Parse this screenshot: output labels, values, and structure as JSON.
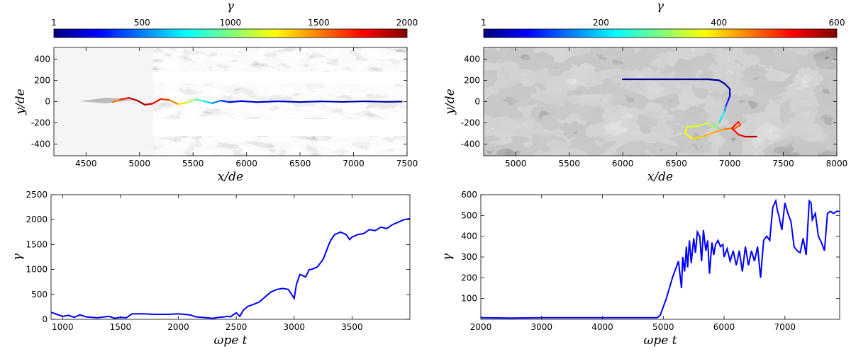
{
  "colors": {
    "line": "#0000ff",
    "jet": [
      "#00007f",
      "#0000ff",
      "#007fff",
      "#00ffff",
      "#7fff7f",
      "#ffff00",
      "#ff7f00",
      "#ff0000",
      "#7f0000"
    ]
  },
  "chart_data": [
    {
      "id": "top-left",
      "type": "image-with-trajectory",
      "title": "",
      "colorbar": {
        "label": "γ",
        "min": 1,
        "max": 2000,
        "ticks": [
          1,
          500,
          1000,
          1500,
          2000
        ],
        "colormap": "jet"
      },
      "xlabel": "x/d_e",
      "ylabel": "y/d_e",
      "xlabel_display": "x/de",
      "ylabel_display": "y/de",
      "xlim": [
        4200,
        7500
      ],
      "ylim": [
        -510,
        510
      ],
      "xticks": [
        4500,
        5000,
        5500,
        6000,
        6500,
        7000,
        7500
      ],
      "yticks": [
        -400,
        -200,
        0,
        200,
        400
      ],
      "background": "grayscale density map",
      "trajectory": {
        "x": [
          4750,
          4820,
          4900,
          4980,
          5050,
          5120,
          5200,
          5280,
          5360,
          5440,
          5520,
          5600,
          5680,
          5760,
          5840,
          5950,
          6100,
          6300,
          6500,
          6700,
          6900,
          7100,
          7300,
          7450
        ],
        "y": [
          -5,
          20,
          35,
          10,
          -30,
          -20,
          25,
          15,
          -25,
          -10,
          20,
          5,
          -15,
          10,
          -5,
          5,
          -5,
          3,
          -4,
          2,
          -3,
          3,
          -2,
          0
        ],
        "gamma": [
          1500,
          1700,
          1900,
          1950,
          1850,
          1750,
          1650,
          1500,
          1300,
          1100,
          900,
          700,
          500,
          350,
          250,
          180,
          140,
          120,
          110,
          100,
          80,
          60,
          40,
          20
        ]
      }
    },
    {
      "id": "top-right",
      "type": "image-with-trajectory",
      "title": "",
      "colorbar": {
        "label": "γ",
        "min": 1,
        "max": 600,
        "ticks": [
          1,
          200,
          400,
          600
        ],
        "colormap": "jet"
      },
      "xlabel": "x/d_e",
      "ylabel": "y/d_e",
      "xlabel_display": "x/de",
      "ylabel_display": "y/de",
      "xlim": [
        4700,
        8000
      ],
      "ylim": [
        -510,
        510
      ],
      "xticks": [
        5000,
        5500,
        6000,
        6500,
        7000,
        7500,
        8000
      ],
      "yticks": [
        -400,
        -200,
        0,
        200,
        400
      ],
      "background": "grayscale turbulent density map",
      "trajectory": {
        "x": [
          6000,
          6300,
          6600,
          6800,
          6900,
          6950,
          7000,
          7000,
          6980,
          6960,
          6950,
          6900,
          6850,
          6800,
          6700,
          6600,
          6580,
          6650,
          6750,
          6850,
          6950,
          7050,
          7100,
          7080,
          7020,
          7080,
          7140,
          7200,
          7250
        ],
        "y": [
          210,
          210,
          210,
          210,
          200,
          170,
          120,
          50,
          0,
          -50,
          -100,
          -200,
          -250,
          -200,
          -230,
          -240,
          -300,
          -350,
          -330,
          -290,
          -260,
          -250,
          -220,
          -190,
          -250,
          -310,
          -330,
          -330,
          -330
        ],
        "gamma": [
          5,
          5,
          8,
          10,
          15,
          25,
          40,
          70,
          110,
          160,
          220,
          300,
          330,
          350,
          360,
          370,
          380,
          400,
          420,
          430,
          450,
          470,
          490,
          510,
          520,
          540,
          560,
          575,
          580
        ]
      }
    },
    {
      "id": "bottom-left",
      "type": "line",
      "title": "",
      "xlabel": "ω_pe t",
      "ylabel": "γ",
      "xlabel_display": "ωpe t",
      "ylabel_display": "γ",
      "xlim": [
        900,
        4000
      ],
      "ylim": [
        0,
        2500
      ],
      "xticks": [
        1000,
        1500,
        2000,
        2500,
        3000,
        3500
      ],
      "yticks": [
        0,
        500,
        1000,
        1500,
        2000,
        2500
      ],
      "grid": false,
      "x": [
        900,
        950,
        1000,
        1050,
        1100,
        1150,
        1200,
        1300,
        1400,
        1450,
        1500,
        1550,
        1600,
        1700,
        1800,
        1900,
        2000,
        2100,
        2150,
        2200,
        2250,
        2300,
        2350,
        2400,
        2420,
        2450,
        2480,
        2500,
        2530,
        2560,
        2600,
        2650,
        2700,
        2750,
        2800,
        2850,
        2900,
        2950,
        3000,
        3020,
        3050,
        3100,
        3130,
        3150,
        3200,
        3250,
        3300,
        3320,
        3350,
        3400,
        3450,
        3480,
        3500,
        3550,
        3600,
        3650,
        3700,
        3750,
        3800,
        3850,
        3900,
        3950,
        4000
      ],
      "y": [
        140,
        100,
        60,
        80,
        40,
        90,
        50,
        30,
        60,
        20,
        40,
        30,
        110,
        110,
        100,
        100,
        110,
        90,
        50,
        40,
        30,
        20,
        40,
        50,
        60,
        50,
        100,
        130,
        60,
        180,
        260,
        300,
        350,
        450,
        550,
        600,
        620,
        600,
        420,
        700,
        900,
        850,
        1000,
        1000,
        1050,
        1200,
        1500,
        1600,
        1700,
        1750,
        1700,
        1600,
        1650,
        1700,
        1720,
        1800,
        1780,
        1850,
        1820,
        1900,
        1950,
        2000,
        2020
      ]
    },
    {
      "id": "bottom-right",
      "type": "line",
      "title": "",
      "xlabel": "ω_pe t",
      "ylabel": "γ",
      "xlabel_display": "ωpe t",
      "ylabel_display": "γ",
      "xlim": [
        2000,
        7900
      ],
      "ylim": [
        0,
        600
      ],
      "xticks": [
        2000,
        3000,
        4000,
        5000,
        6000,
        7000
      ],
      "yticks": [
        100,
        200,
        300,
        400,
        500,
        600
      ],
      "grid": false,
      "x": [
        2000,
        2500,
        3000,
        3500,
        4000,
        4500,
        4900,
        4950,
        5000,
        5050,
        5100,
        5150,
        5200,
        5250,
        5300,
        5320,
        5350,
        5380,
        5400,
        5430,
        5460,
        5500,
        5530,
        5560,
        5600,
        5630,
        5660,
        5700,
        5730,
        5760,
        5800,
        5830,
        5860,
        5900,
        5940,
        5980,
        6000,
        6050,
        6100,
        6150,
        6200,
        6250,
        6300,
        6350,
        6400,
        6450,
        6500,
        6550,
        6600,
        6650,
        6700,
        6750,
        6800,
        6850,
        6880,
        6900,
        6950,
        7000,
        7050,
        7100,
        7150,
        7200,
        7250,
        7300,
        7350,
        7400,
        7430,
        7450,
        7500,
        7550,
        7600,
        7650,
        7700,
        7750,
        7800,
        7850,
        7900
      ],
      "y": [
        8,
        6,
        8,
        8,
        8,
        8,
        8,
        20,
        60,
        100,
        150,
        200,
        240,
        280,
        150,
        300,
        230,
        350,
        250,
        380,
        270,
        390,
        320,
        420,
        400,
        280,
        430,
        330,
        380,
        220,
        370,
        310,
        360,
        380,
        350,
        360,
        300,
        340,
        280,
        330,
        260,
        330,
        230,
        350,
        260,
        330,
        280,
        350,
        200,
        380,
        400,
        380,
        540,
        570,
        520,
        500,
        430,
        560,
        510,
        470,
        350,
        330,
        320,
        390,
        310,
        570,
        560,
        480,
        510,
        400,
        370,
        330,
        510,
        520,
        510,
        520,
        520
      ]
    }
  ]
}
